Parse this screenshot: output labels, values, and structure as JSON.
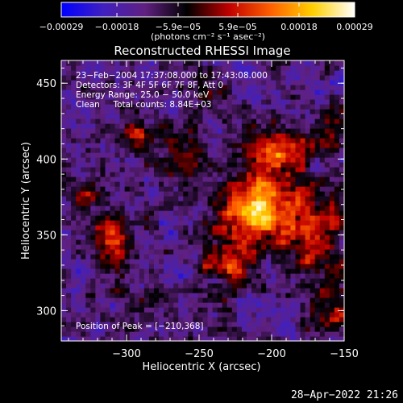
{
  "chart_data": {
    "type": "heatmap",
    "title": "Reconstructed RHESSI Image",
    "xlabel": "Heliocentric X (arcsec)",
    "ylabel": "Heliocentric Y (arcsec)",
    "xlim": [
      -345,
      -150
    ],
    "ylim": [
      280,
      465
    ],
    "x_ticks": [
      {
        "value": -300,
        "label": "−300"
      },
      {
        "value": -250,
        "label": "−250"
      },
      {
        "value": -200,
        "label": "−200"
      },
      {
        "value": -150,
        "label": "−150"
      }
    ],
    "y_ticks": [
      {
        "value": 300,
        "label": "300"
      },
      {
        "value": 350,
        "label": "350"
      },
      {
        "value": 400,
        "label": "400"
      },
      {
        "value": 450,
        "label": "450"
      }
    ],
    "colorbar": {
      "range": [
        -0.00029,
        0.00029
      ],
      "ticks": [
        {
          "value": -0.00029,
          "label": "−0.00029"
        },
        {
          "value": -0.00018,
          "label": "−0.00018"
        },
        {
          "value": -5.9e-05,
          "label": "−5.9e−05"
        },
        {
          "value": 5.9e-05,
          "label": "5.9e−05"
        },
        {
          "value": 0.00018,
          "label": "0.00018"
        },
        {
          "value": 0.00029,
          "label": "0.00029"
        }
      ],
      "units_label": "(photons cm⁻² s⁻¹ asec⁻²)",
      "colormap": [
        "#0000ff",
        "#4020c0",
        "#602080",
        "#000000",
        "#c00000",
        "#ff6000",
        "#ffd000",
        "#ffffff"
      ]
    },
    "annotations": [
      "23−Feb−2004 17:37:08.000 to 17:43:08.000",
      "Detectors: 3F 4F 5F 6F 7F 8F, Att 0",
      "Energy Range: 25.0 − 50.0 keV",
      "Clean     Total counts: 8.84E+03"
    ],
    "peak_label": "Position of Peak = [−210,368]",
    "peak": [
      -210,
      368
    ],
    "sources": [
      {
        "x": -210,
        "y": 368,
        "sx": 18,
        "sy": 16,
        "amp": 1.0
      },
      {
        "x": -195,
        "y": 405,
        "sx": 14,
        "sy": 10,
        "amp": 0.6
      },
      {
        "x": -170,
        "y": 350,
        "sx": 12,
        "sy": 20,
        "amp": 0.55
      },
      {
        "x": -230,
        "y": 330,
        "sx": 12,
        "sy": 12,
        "amp": 0.45
      },
      {
        "x": -310,
        "y": 345,
        "sx": 9,
        "sy": 14,
        "amp": 0.55
      },
      {
        "x": -292,
        "y": 415,
        "sx": 7,
        "sy": 7,
        "amp": 0.45
      },
      {
        "x": -262,
        "y": 400,
        "sx": 9,
        "sy": 12,
        "amp": 0.35
      },
      {
        "x": -160,
        "y": 415,
        "sx": 7,
        "sy": 9,
        "amp": 0.4
      },
      {
        "x": -158,
        "y": 300,
        "sx": 9,
        "sy": 11,
        "amp": 0.35
      },
      {
        "x": -282,
        "y": 302,
        "sx": 8,
        "sy": 8,
        "amp": 0.25
      },
      {
        "x": -325,
        "y": 375,
        "sx": 6,
        "sy": 8,
        "amp": 0.35
      },
      {
        "x": -240,
        "y": 445,
        "sx": 9,
        "sy": 7,
        "amp": 0.3
      }
    ]
  },
  "timestamp": "28−Apr−2022 21:26"
}
